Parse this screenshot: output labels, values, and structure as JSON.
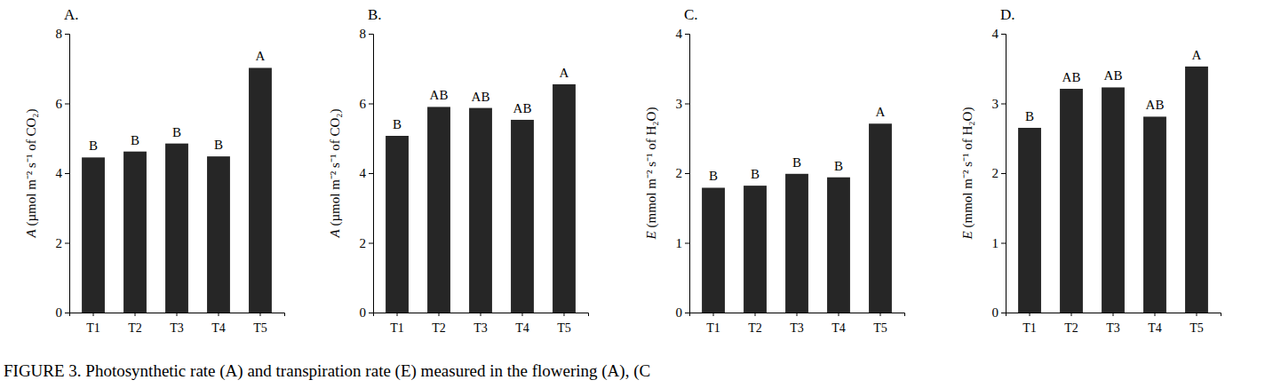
{
  "chart_data": [
    {
      "type": "bar",
      "title": "A.",
      "ylabel": "A (µmol m⁻² s⁻¹ of CO₂)",
      "categories": [
        "T1",
        "T2",
        "T3",
        "T4",
        "T5"
      ],
      "values": [
        4.45,
        4.62,
        4.85,
        4.48,
        7.02
      ],
      "annotations": [
        "B",
        "B",
        "B",
        "B",
        "A"
      ],
      "color": "#262626",
      "ylim": [
        0,
        8
      ],
      "yticks": [
        0,
        2,
        4,
        6,
        8
      ],
      "grid": false
    },
    {
      "type": "bar",
      "title": "B.",
      "ylabel": "A (µmol m⁻² s⁻¹ of CO₂)",
      "categories": [
        "T1",
        "T2",
        "T3",
        "T4",
        "T5"
      ],
      "values": [
        5.07,
        5.9,
        5.87,
        5.53,
        6.55
      ],
      "annotations": [
        "B",
        "AB",
        "AB",
        "AB",
        "A"
      ],
      "color": "#262626",
      "ylim": [
        0,
        8
      ],
      "yticks": [
        0,
        2,
        4,
        6,
        8
      ],
      "grid": false
    },
    {
      "type": "bar",
      "title": "C.",
      "ylabel": "E (mmol m⁻² s⁻¹ of H₂O)",
      "categories": [
        "T1",
        "T2",
        "T3",
        "T4",
        "T5"
      ],
      "values": [
        1.79,
        1.82,
        1.99,
        1.94,
        2.71
      ],
      "annotations": [
        "B",
        "B",
        "B",
        "B",
        "A"
      ],
      "color": "#262626",
      "ylim": [
        0,
        4
      ],
      "yticks": [
        0,
        1,
        2,
        3,
        4
      ],
      "grid": false
    },
    {
      "type": "bar",
      "title": "D.",
      "ylabel": "E (mmol m⁻² s⁻¹ of H₂O)",
      "categories": [
        "T1",
        "T2",
        "T3",
        "T4",
        "T5"
      ],
      "values": [
        2.65,
        3.21,
        3.23,
        2.81,
        3.53
      ],
      "annotations": [
        "B",
        "AB",
        "AB",
        "AB",
        "A"
      ],
      "color": "#262626",
      "ylim": [
        0,
        4
      ],
      "yticks": [
        0,
        1,
        2,
        3,
        4
      ],
      "grid": false
    }
  ],
  "caption": "FIGURE 3. Photosynthetic rate (A) and transpiration rate (E) measured in the flowering (A), (C"
}
